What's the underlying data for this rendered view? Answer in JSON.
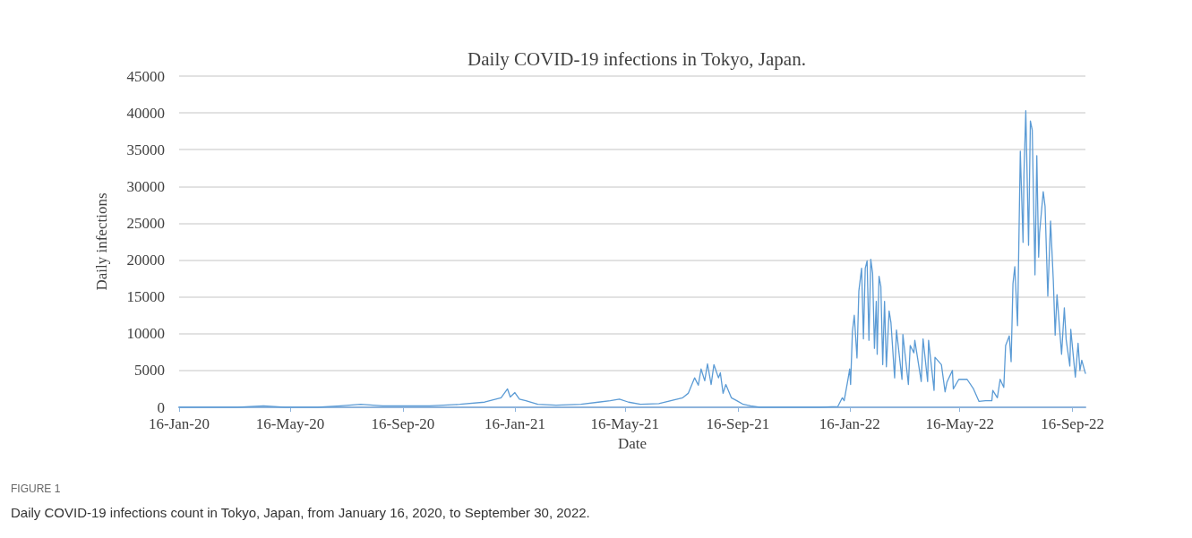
{
  "chart_data": {
    "type": "line",
    "title": "Daily COVID-19 infections in Tokyo, Japan.",
    "xlabel": "Date",
    "ylabel": "Daily infections",
    "annotations": [
      "FIGURE 1",
      "Daily COVID-19 infections count in Tokyo, Japan, from January 16, 2020, to September 30, 2022."
    ],
    "x": [
      "2020-01-16",
      "2020-03-20",
      "2020-04-17",
      "2020-05-10",
      "2020-06-15",
      "2020-07-10",
      "2020-08-01",
      "2020-08-25",
      "2020-09-20",
      "2020-10-15",
      "2020-11-17",
      "2020-12-14",
      "2021-01-01",
      "2021-01-08",
      "2021-01-11",
      "2021-01-16",
      "2021-01-21",
      "2021-01-28",
      "2021-02-10",
      "2021-03-02",
      "2021-03-29",
      "2021-04-17",
      "2021-04-30",
      "2021-05-10",
      "2021-05-20",
      "2021-06-02",
      "2021-06-22",
      "2021-07-05",
      "2021-07-18",
      "2021-07-24",
      "2021-07-31",
      "2021-08-04",
      "2021-08-07",
      "2021-08-11",
      "2021-08-14",
      "2021-08-18",
      "2021-08-21",
      "2021-08-26",
      "2021-08-28",
      "2021-08-31",
      "2021-09-03",
      "2021-09-09",
      "2021-09-15",
      "2021-09-22",
      "2021-09-30",
      "2021-10-10",
      "2021-11-12",
      "2021-12-15",
      "2022-01-03",
      "2022-01-08",
      "2022-01-10",
      "2022-01-14",
      "2022-01-16",
      "2022-01-17",
      "2022-01-19",
      "2022-01-21",
      "2022-01-24",
      "2022-01-26",
      "2022-01-29",
      "2022-01-31",
      "2022-02-02",
      "2022-02-04",
      "2022-02-06",
      "2022-02-08",
      "2022-02-10",
      "2022-02-12",
      "2022-02-14",
      "2022-02-15",
      "2022-02-17",
      "2022-02-19",
      "2022-02-21",
      "2022-02-23",
      "2022-02-25",
      "2022-02-28",
      "2022-03-02",
      "2022-03-06",
      "2022-03-08",
      "2022-03-14",
      "2022-03-15",
      "2022-03-21",
      "2022-03-23",
      "2022-03-27",
      "2022-03-28",
      "2022-04-04",
      "2022-04-06",
      "2022-04-11",
      "2022-04-12",
      "2022-04-18",
      "2022-04-19",
      "2022-04-26",
      "2022-04-30",
      "2022-05-02",
      "2022-05-08",
      "2022-05-09",
      "2022-05-15",
      "2022-05-24",
      "2022-05-31",
      "2022-06-06",
      "2022-06-13",
      "2022-06-20",
      "2022-06-21",
      "2022-06-26",
      "2022-06-29",
      "2022-07-03",
      "2022-07-05",
      "2022-07-09",
      "2022-07-11",
      "2022-07-13",
      "2022-07-15",
      "2022-07-18",
      "2022-07-21",
      "2022-07-24",
      "2022-07-25",
      "2022-07-27",
      "2022-07-30",
      "2022-08-01",
      "2022-08-03",
      "2022-08-06",
      "2022-08-08",
      "2022-08-10",
      "2022-08-11",
      "2022-08-15",
      "2022-08-17",
      "2022-08-20",
      "2022-08-23",
      "2022-08-26",
      "2022-08-28",
      "2022-08-30",
      "2022-09-04",
      "2022-09-07",
      "2022-09-09",
      "2022-09-13",
      "2022-09-14",
      "2022-09-19",
      "2022-09-22",
      "2022-09-24",
      "2022-09-26",
      "2022-09-30"
    ],
    "series": [
      {
        "color": "#5b9bd5",
        "values": [
          0,
          0,
          200,
          0,
          0,
          200,
          400,
          200,
          200,
          200,
          400,
          700,
          1300,
          2500,
          1400,
          2000,
          1100,
          900,
          400,
          300,
          400,
          700,
          900,
          1100,
          700,
          400,
          500,
          900,
          1300,
          1900,
          4000,
          3000,
          5200,
          3600,
          5900,
          3100,
          5800,
          4000,
          4700,
          1900,
          3100,
          1300,
          900,
          400,
          200,
          0,
          0,
          0,
          100,
          1300,
          900,
          3700,
          5200,
          3100,
          10300,
          12500,
          6700,
          15800,
          18900,
          9300,
          18900,
          19900,
          9100,
          20100,
          18200,
          8000,
          14400,
          7200,
          17800,
          16400,
          5800,
          14400,
          5500,
          13100,
          11500,
          4000,
          10500,
          3800,
          9900,
          3100,
          8400,
          7400,
          9100,
          3500,
          9300,
          3500,
          9100,
          2300,
          6800,
          5800,
          2100,
          3400,
          5000,
          2500,
          3800,
          3800,
          2500,
          800,
          900,
          900,
          2300,
          1300,
          3800,
          2700,
          8400,
          9700,
          6200,
          16800,
          19100,
          11100,
          34800,
          22400,
          31600,
          40300,
          22000,
          38900,
          37700,
          18000,
          34200,
          20400,
          23700,
          29300,
          27300,
          15100,
          25300,
          17200,
          9800,
          15300,
          7200,
          13500,
          9200,
          5600,
          10600,
          4100,
          8700,
          5000,
          6400,
          4600
        ]
      }
    ],
    "xlim": [
      "2020-01-16",
      "2022-09-30"
    ],
    "xticks": [
      {
        "value": "2020-01-16",
        "label": "16-Jan-20"
      },
      {
        "value": "2020-05-16",
        "label": "16-May-20"
      },
      {
        "value": "2020-09-16",
        "label": "16-Sep-20"
      },
      {
        "value": "2021-01-16",
        "label": "16-Jan-21"
      },
      {
        "value": "2021-05-16",
        "label": "16-May-21"
      },
      {
        "value": "2021-09-16",
        "label": "16-Sep-21"
      },
      {
        "value": "2022-01-16",
        "label": "16-Jan-22"
      },
      {
        "value": "2022-05-16",
        "label": "16-May-22"
      },
      {
        "value": "2022-09-16",
        "label": "16-Sep-22"
      }
    ],
    "ylim": [
      0,
      45000
    ],
    "yticks": [
      0,
      5000,
      10000,
      15000,
      20000,
      25000,
      30000,
      35000,
      40000,
      45000
    ],
    "grid": "y",
    "marker": "none",
    "line_style": "solid"
  }
}
